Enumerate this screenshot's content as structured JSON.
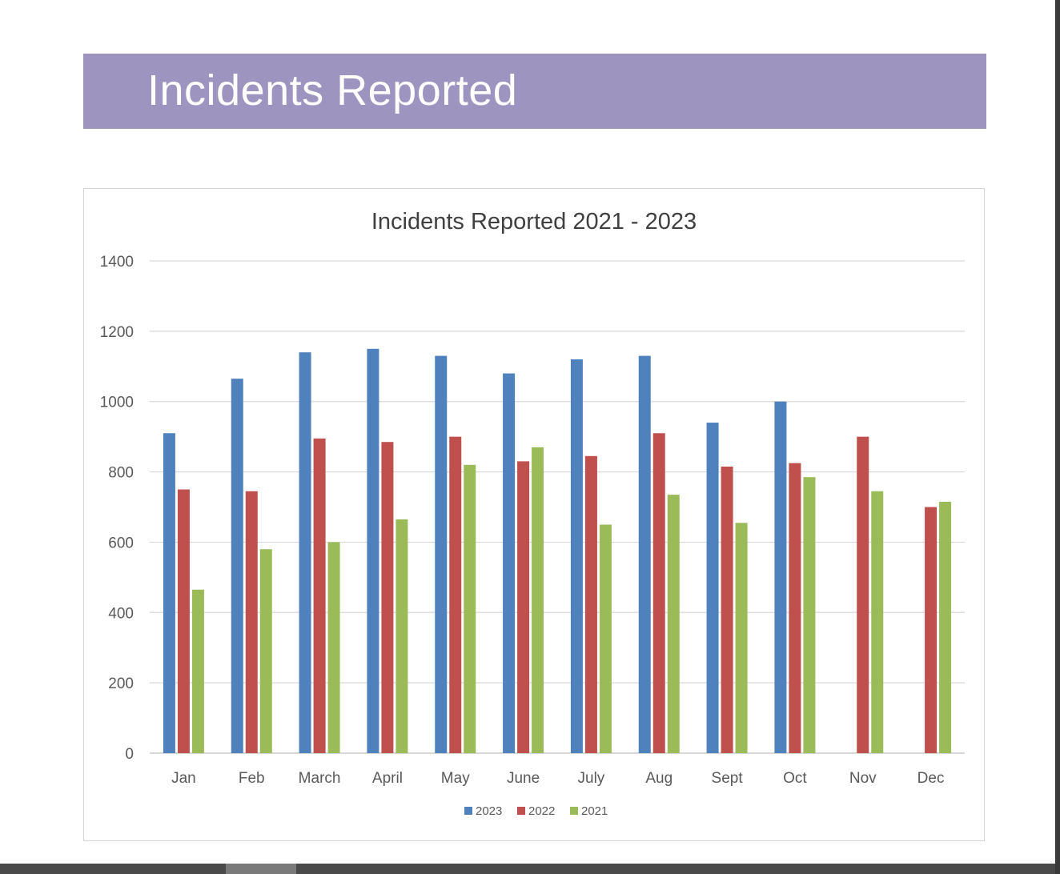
{
  "banner": {
    "title": "Incidents Reported"
  },
  "chart_data": {
    "type": "bar",
    "title": "Incidents Reported 2021 - 2023",
    "xlabel": "",
    "ylabel": "",
    "ylim": [
      0,
      1400
    ],
    "yticks": [
      0,
      200,
      400,
      600,
      800,
      1000,
      1200,
      1400
    ],
    "grid": true,
    "legend": "bottom",
    "categories": [
      "Jan",
      "Feb",
      "March",
      "April",
      "May",
      "June",
      "July",
      "Aug",
      "Sept",
      "Oct",
      "Nov",
      "Dec"
    ],
    "series": [
      {
        "name": "2023",
        "color": "#4f81bd",
        "values": [
          910,
          1065,
          1140,
          1150,
          1130,
          1080,
          1120,
          1130,
          940,
          1000,
          null,
          null
        ]
      },
      {
        "name": "2022",
        "color": "#c0504d",
        "values": [
          750,
          745,
          895,
          885,
          900,
          830,
          845,
          910,
          815,
          825,
          900,
          700
        ]
      },
      {
        "name": "2021",
        "color": "#9bbb59",
        "values": [
          465,
          580,
          600,
          665,
          820,
          870,
          650,
          735,
          655,
          785,
          745,
          715
        ]
      }
    ]
  }
}
